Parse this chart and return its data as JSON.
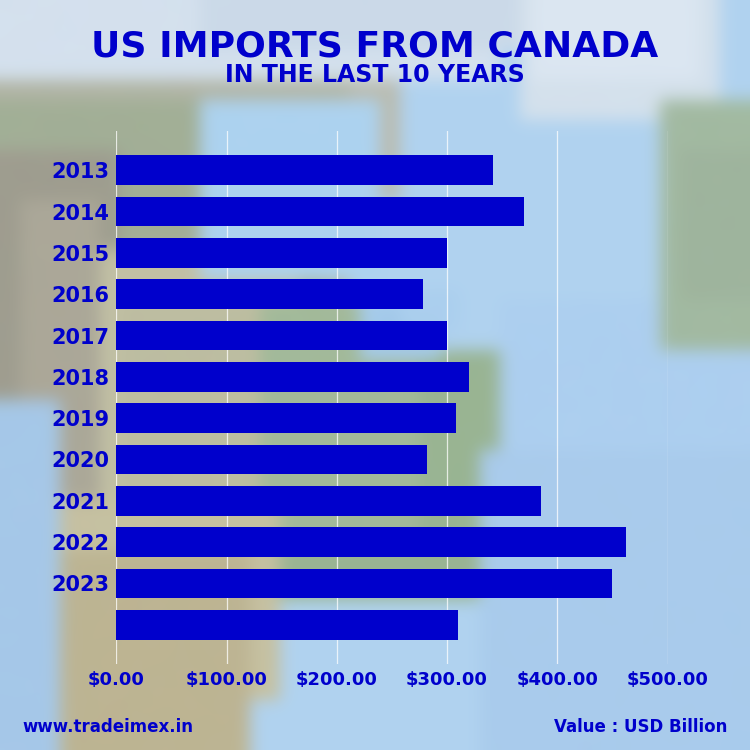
{
  "title_line1": "US IMPORTS FROM CANADA",
  "title_line2": "IN THE LAST 10 YEARS",
  "years": [
    "2013",
    "2014",
    "2015",
    "2016",
    "2017",
    "2018",
    "2019",
    "2020",
    "2021",
    "2022",
    "2023",
    ""
  ],
  "values": [
    342,
    370,
    300,
    278,
    300,
    320,
    308,
    282,
    385,
    462,
    450,
    310
  ],
  "bar_color": "#0000CC",
  "title_color": "#0000CC",
  "label_color": "#0000CC",
  "tick_color": "#0000CC",
  "xlim": [
    0,
    500
  ],
  "xticks": [
    0,
    100,
    200,
    300,
    400,
    500
  ],
  "xtick_labels": [
    "$0.00",
    "$100.00",
    "$200.00",
    "$300.00",
    "$400.00",
    "$500.00"
  ],
  "footer_left": "www.tradeimex.in",
  "footer_right": "Value : USD Billion",
  "title_fontsize": 26,
  "subtitle_fontsize": 17,
  "bar_label_fontsize": 15,
  "tick_fontsize": 13,
  "footer_fontsize": 12
}
